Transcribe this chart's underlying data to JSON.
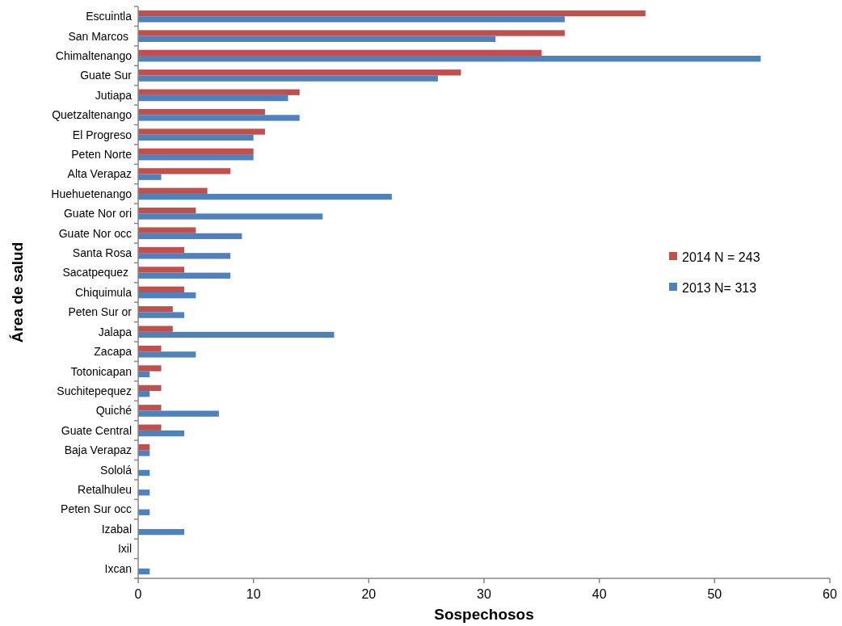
{
  "chart_data": {
    "type": "bar",
    "orientation": "horizontal",
    "xlabel": "Sospechosos",
    "ylabel": "Área de salud",
    "categories": [
      "Escuintla",
      "San Marcos ",
      "Chimaltenango",
      "Guate Sur",
      "Jutiapa",
      "Quetzaltenango",
      "El Progreso",
      "Peten Norte",
      "Alta Verapaz",
      "Huehuetenango",
      "Guate Nor ori",
      "Guate Nor occ",
      "Santa Rosa",
      "Sacatpequez ",
      "Chiquimula",
      "Peten Sur or",
      "Jalapa",
      "Zacapa",
      "Totonicapan",
      "Suchitepequez",
      "Quiché",
      "Guate Central",
      "Baja Verapaz",
      "Sololá",
      "Retalhuleu",
      "Peten Sur occ",
      "Izabal",
      "Ixil",
      "Ixcan"
    ],
    "series": [
      {
        "name": "2014 N = 243",
        "color": "#c0504d",
        "values": [
          44,
          37,
          35,
          28,
          14,
          11,
          11,
          10,
          8,
          6,
          5,
          5,
          4,
          4,
          4,
          3,
          3,
          2,
          2,
          2,
          2,
          2,
          1,
          0,
          0,
          0,
          0,
          0,
          0
        ]
      },
      {
        "name": "2013 N= 313",
        "color": "#4f81bd",
        "values": [
          37,
          31,
          54,
          26,
          13,
          14,
          10,
          10,
          2,
          22,
          16,
          9,
          8,
          8,
          5,
          4,
          17,
          5,
          1,
          1,
          7,
          4,
          1,
          1,
          1,
          1,
          4,
          0,
          1
        ]
      }
    ],
    "xlim": [
      0,
      60
    ],
    "xticks": [
      0,
      10,
      20,
      30,
      40,
      50,
      60
    ],
    "grid": false,
    "legend": "right"
  }
}
